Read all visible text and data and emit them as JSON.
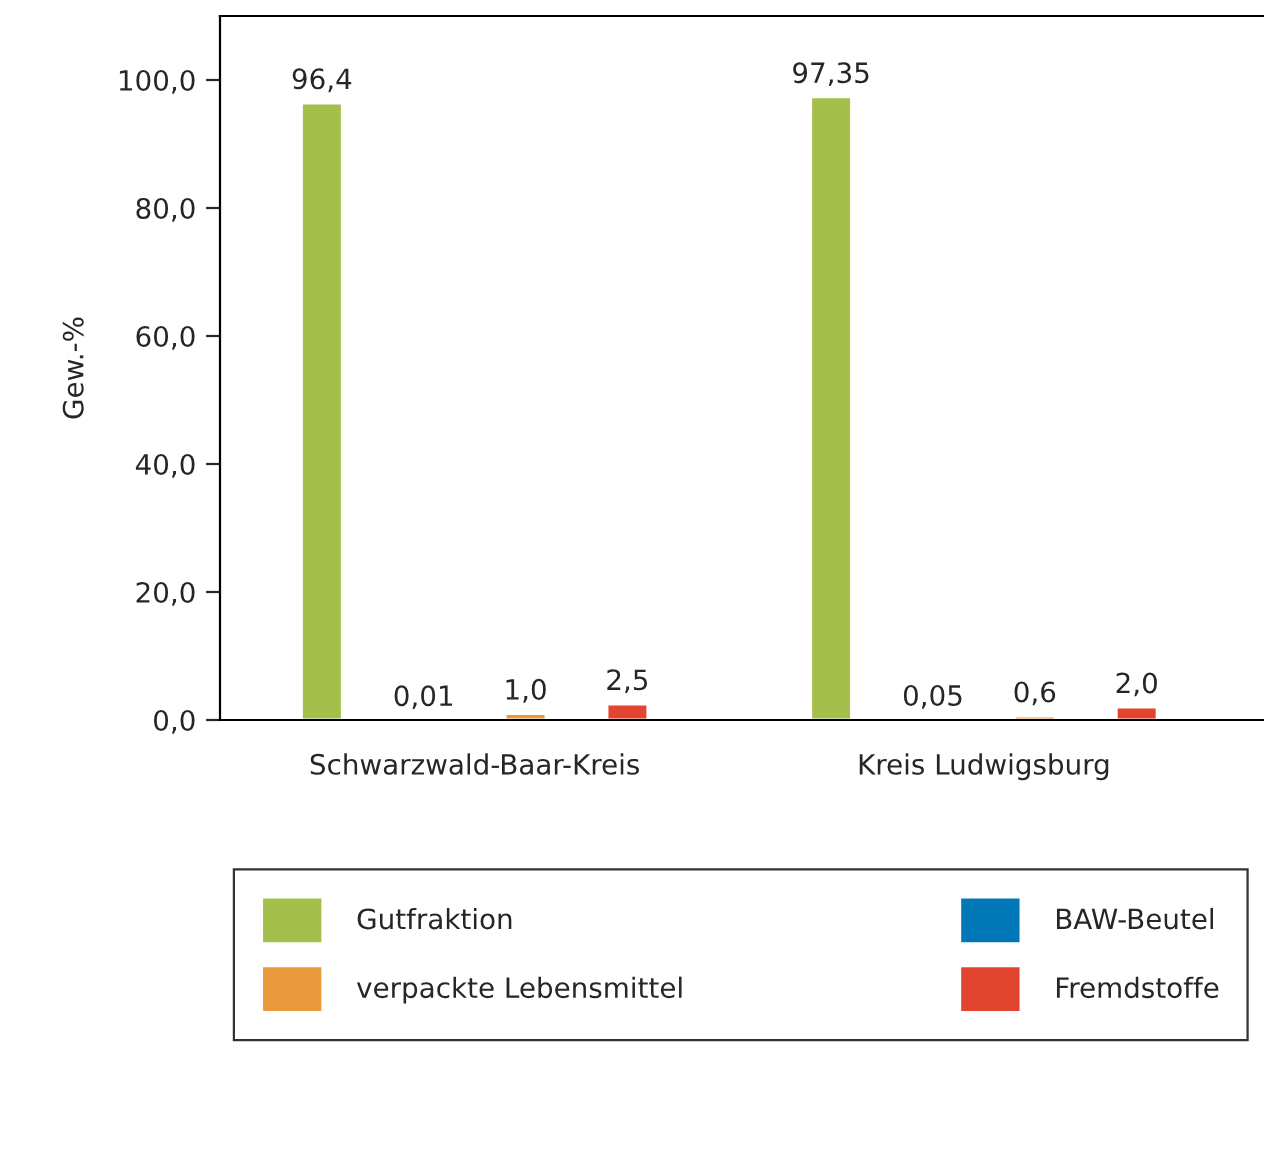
{
  "chart_data": {
    "type": "bar",
    "ylabel": "Gew.-%",
    "categories": [
      "Schwarzwald-Baar-Kreis",
      "Kreis Ludwigsburg"
    ],
    "series": [
      {
        "name": "Gutfraktion",
        "color": "#a4bf4a",
        "values": [
          96.4,
          97.35
        ],
        "value_labels": [
          "96,4",
          "97,35"
        ]
      },
      {
        "name": "BAW-Beutel",
        "color": "#0077b6",
        "values": [
          0.01,
          0.05
        ],
        "value_labels": [
          "0,01",
          "0,05"
        ]
      },
      {
        "name": "verpackte Lebensmittel",
        "color": "#e89a3c",
        "values": [
          1.0,
          0.6
        ],
        "value_labels": [
          "1,0",
          "0,6"
        ]
      },
      {
        "name": "Fremdstoffe",
        "color": "#e2452f",
        "values": [
          2.5,
          2.0
        ],
        "value_labels": [
          "2,5",
          "2,0"
        ]
      }
    ],
    "ylim": [
      0,
      110
    ],
    "yticks": [
      {
        "value": 0,
        "label": "0,0"
      },
      {
        "value": 20,
        "label": "20,0"
      },
      {
        "value": 40,
        "label": "40,0"
      },
      {
        "value": 60,
        "label": "60,0"
      },
      {
        "value": 80,
        "label": "80,0"
      },
      {
        "value": 100,
        "label": "100,0"
      }
    ],
    "legend": "bottom",
    "grid": false
  }
}
